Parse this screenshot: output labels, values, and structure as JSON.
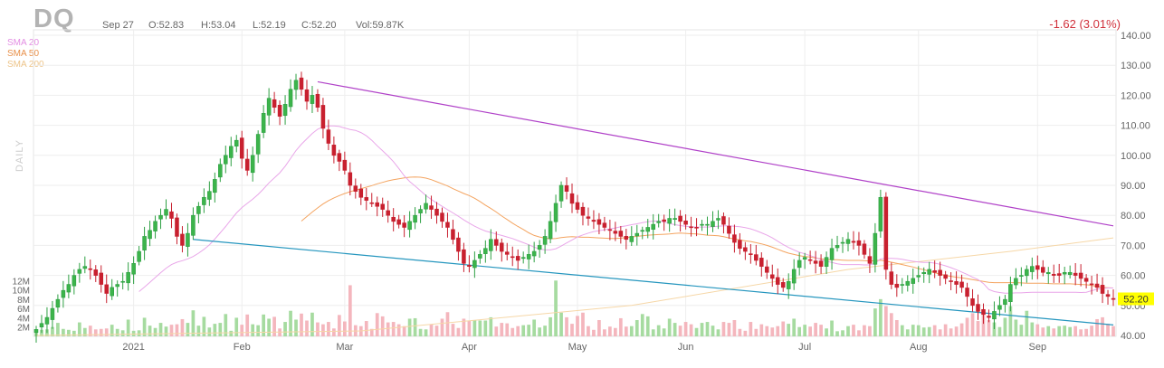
{
  "header": {
    "ticker": "DQ",
    "date": "Sep 27",
    "open": "O:52.83",
    "high": "H:53.04",
    "low": "L:52.19",
    "close": "C:52.20",
    "volume": "Vol:59.87K",
    "change": "-1.62 (3.01%)"
  },
  "legend": {
    "sma20": "SMA 20",
    "sma50": "SMA 50",
    "sma200": "SMA 200",
    "period": "DAILY"
  },
  "colors": {
    "up": "#2ea043",
    "up_fill": "#3cb44b",
    "down": "#c8202f",
    "vol_up": "#a6dba0",
    "vol_down": "#f4b6bd",
    "sma20": "#e9a6e9",
    "sma50": "#f4a460",
    "sma200": "#f6d7a7",
    "upper_trend": "#b041c8",
    "lower_trend": "#2596be",
    "last_price_bg": "#ffff00"
  },
  "chart_data": {
    "type": "candlestick",
    "price_axis": {
      "min": 40,
      "max": 140,
      "ticks": [
        "140.00",
        "130.00",
        "120.00",
        "110.00",
        "100.00",
        "90.00",
        "80.00",
        "70.00",
        "60.00",
        "50.00",
        "40.00"
      ],
      "values": [
        140,
        130,
        120,
        110,
        100,
        90,
        80,
        70,
        60,
        50,
        40
      ]
    },
    "volume_axis": {
      "max": 14,
      "ticks": [
        "12M",
        "10M",
        "8M",
        "6M",
        "4M",
        "2M"
      ],
      "values": [
        12,
        10,
        8,
        6,
        4,
        2
      ]
    },
    "x_labels": [
      {
        "label": "2021",
        "i": 18
      },
      {
        "label": "Feb",
        "i": 38
      },
      {
        "label": "Mar",
        "i": 57
      },
      {
        "label": "Apr",
        "i": 80
      },
      {
        "label": "May",
        "i": 100
      },
      {
        "label": "Jun",
        "i": 120
      },
      {
        "label": "Jul",
        "i": 142
      },
      {
        "label": "Aug",
        "i": 163
      },
      {
        "label": "Sep",
        "i": 185
      }
    ],
    "last_price": "52.20",
    "last_price_value": 52.2,
    "closes": [
      42,
      44,
      46,
      49,
      52,
      55,
      57,
      60,
      62,
      63,
      62,
      60,
      57,
      54,
      56,
      57,
      58,
      61,
      64,
      68,
      73,
      75,
      78,
      80,
      82,
      79,
      73,
      70,
      74,
      80,
      83,
      86,
      88,
      92,
      97,
      100,
      103,
      105,
      99,
      95,
      100,
      107,
      114,
      119,
      116,
      113,
      117,
      122,
      125,
      122,
      118,
      120,
      116,
      109,
      104,
      100,
      98,
      95,
      90,
      88,
      86,
      85,
      84,
      83,
      82,
      80,
      78,
      77,
      76,
      78,
      80,
      82,
      84,
      82,
      80,
      78,
      76,
      72,
      68,
      64,
      63,
      65,
      67,
      69,
      72,
      70,
      68,
      67,
      66,
      65,
      66,
      67,
      68,
      70,
      73,
      78,
      84,
      90,
      88,
      84,
      82,
      80,
      79,
      78,
      77,
      76,
      75,
      74,
      73,
      72,
      73,
      74,
      75,
      76,
      77,
      78,
      78,
      79,
      79,
      78,
      77,
      76,
      76,
      77,
      77,
      78,
      79,
      77,
      74,
      71,
      69,
      68,
      67,
      65,
      63,
      61,
      59,
      57,
      56,
      58,
      62,
      65,
      66,
      65,
      64,
      63,
      66,
      69,
      70,
      71,
      72,
      71,
      70,
      67,
      64,
      74,
      86,
      62,
      57,
      56,
      57,
      58,
      59,
      60,
      61,
      62,
      61,
      60,
      59,
      58,
      57,
      56,
      53,
      50,
      48,
      47,
      46,
      48,
      50,
      52,
      57,
      59,
      60,
      62,
      63,
      62,
      61,
      61,
      60,
      60,
      61,
      61,
      60,
      59,
      58,
      57,
      56,
      54,
      53,
      52
    ],
    "sma20": [
      null,
      null,
      null,
      null,
      null,
      null,
      null,
      null,
      null,
      null,
      null,
      null,
      null,
      null,
      null,
      null,
      null,
      null,
      null,
      54.6,
      56.1,
      57.7,
      59.3,
      60.9,
      62.4,
      63.6,
      64.4,
      64.9,
      65.5,
      66.3,
      67.4,
      68.7,
      70.2,
      72.1,
      74.2,
      76.3,
      78.6,
      80.8,
      82.6,
      84.0,
      85.4,
      87.0,
      88.8,
      90.8,
      92.5,
      94.2,
      96.4,
      99.0,
      101.6,
      103.7,
      105.5,
      107.3,
      108.7,
      109.5,
      109.8,
      109.8,
      109.6,
      109.1,
      108.6,
      108.3,
      107.6,
      106.5,
      105.0,
      103.2,
      101.5,
      99.8,
      97.9,
      95.6,
      93.2,
      91.3,
      89.8,
      88.2,
      86.6,
      85.3,
      84.1,
      83.0,
      81.9,
      80.8,
      79.7,
      78.5,
      77.4,
      76.4,
      75.5,
      74.8,
      74.3,
      73.8,
      73.3,
      72.8,
      72.3,
      71.6,
      70.9,
      70.2,
      69.4,
      68.8,
      68.5,
      68.5,
      68.9,
      69.8,
      70.8,
      71.8,
      72.8,
      73.5,
      74.1,
      74.6,
      74.9,
      75.2,
      75.5,
      75.8,
      76.2,
      76.5,
      76.9,
      77.2,
      77.6,
      77.9,
      78.1,
      78.1,
      77.8,
      77.3,
      76.9,
      76.6,
      76.4,
      76.2,
      76.1,
      76.1,
      76.1,
      76.2,
      76.4,
      76.5,
      76.5,
      76.4,
      76.2,
      75.9,
      75.5,
      74.9,
      74.2,
      73.4,
      72.5,
      71.4,
      70.3,
      69.3,
      68.5,
      67.7,
      67.2,
      66.6,
      66.0,
      65.2,
      64.7,
      64.3,
      63.9,
      63.6,
      63.6,
      63.6,
      63.6,
      63.5,
      63.5,
      64.1,
      65.5,
      65.7,
      65.7,
      65.6,
      65.4,
      65.0,
      64.7,
      64.5,
      64.3,
      64.3,
      64.1,
      63.7,
      63.2,
      62.6,
      61.9,
      61.1,
      60.3,
      59.4,
      58.6,
      57.3,
      55.3,
      54.6,
      54.3,
      54.1,
      54.1,
      54.2,
      54.2,
      54.3,
      54.4,
      54.4,
      54.4,
      54.4,
      54.4,
      54.4,
      54.4,
      54.4,
      54.4,
      54.3,
      54.4,
      54.9,
      55.4,
      55.7,
      55.8,
      55.8
    ],
    "sma50": [
      null,
      null,
      null,
      null,
      null,
      null,
      null,
      null,
      null,
      null,
      null,
      null,
      null,
      null,
      null,
      null,
      null,
      null,
      null,
      null,
      null,
      null,
      null,
      null,
      null,
      null,
      null,
      null,
      null,
      null,
      null,
      null,
      null,
      null,
      null,
      null,
      null,
      null,
      null,
      null,
      null,
      null,
      null,
      null,
      null,
      null,
      null,
      null,
      null,
      78.1,
      79.6,
      81.1,
      82.5,
      83.8,
      84.9,
      85.8,
      86.6,
      87.3,
      87.9,
      88.4,
      88.9,
      89.4,
      89.9,
      90.5,
      91.0,
      91.5,
      91.9,
      92.2,
      92.5,
      92.7,
      92.8,
      92.7,
      92.4,
      91.9,
      91.2,
      90.5,
      89.8,
      88.9,
      88.1,
      87.3,
      86.6,
      85.7,
      84.6,
      83.4,
      82.3,
      81.1,
      79.8,
      78.6,
      77.4,
      76.3,
      75.3,
      74.2,
      73.3,
      72.8,
      72.4,
      72.2,
      72.3,
      72.6,
      72.8,
      72.9,
      72.8,
      72.7,
      72.7,
      72.6,
      72.5,
      72.4,
      72.3,
      72.3,
      72.4,
      72.6,
      72.8,
      73.0,
      73.2,
      73.4,
      73.5,
      73.6,
      73.7,
      73.8,
      74.0,
      74.1,
      74.0,
      73.9,
      73.8,
      73.6,
      73.4,
      73.3,
      73.2,
      72.9,
      72.5,
      72.1,
      71.8,
      71.5,
      71.3,
      70.9,
      70.5,
      70.0,
      69.4,
      68.7,
      68.0,
      67.4,
      67.0,
      66.6,
      66.3,
      66.1,
      65.8,
      65.5,
      65.3,
      65.2,
      65.2,
      65.1,
      65.0,
      65.0,
      65.0,
      64.9,
      64.8,
      64.9,
      65.1,
      64.8,
      64.4,
      64.0,
      63.6,
      63.2,
      62.8,
      62.3,
      61.9,
      61.4,
      60.9,
      60.4,
      60.0,
      59.7,
      59.4,
      59.2,
      58.9,
      58.6,
      58.3,
      58.0,
      57.7,
      57.6,
      57.6,
      57.6,
      57.6,
      57.6,
      57.5,
      57.4,
      57.4,
      57.4,
      57.4,
      57.3,
      57.2,
      57.2,
      57.2,
      57.2,
      57.1,
      57.0,
      56.9,
      56.7,
      56.3,
      56.0,
      55.9,
      55.8
    ],
    "sma200_points": [
      [
        0,
        40.0
      ],
      [
        60,
        41.5
      ],
      [
        110,
        50.0
      ],
      [
        150,
        62.0
      ],
      [
        180,
        68.0
      ],
      [
        199,
        72.5
      ]
    ],
    "trendlines": [
      {
        "name": "upper",
        "from": [
          52,
          124.5
        ],
        "to": [
          199,
          76.5
        ]
      },
      {
        "name": "lower",
        "from": [
          29,
          72.0
        ],
        "to": [
          199,
          43.5
        ]
      }
    ],
    "volume_millions": [
      1.3,
      1.4,
      1.5,
      2.0,
      2.9,
      1.6,
      1.4,
      1.2,
      3.0,
      1.8,
      2.3,
      1.5,
      1.6,
      1.7,
      2.5,
      1.6,
      1.3,
      3.6,
      1.2,
      1.3,
      4.0,
      2.3,
      1.8,
      2.9,
      2.1,
      2.5,
      2.6,
      3.7,
      2.9,
      5.6,
      2.3,
      4.2,
      1.9,
      2.7,
      2.9,
      4.8,
      1.2,
      4.0,
      2.5,
      4.7,
      2.6,
      2.4,
      4.7,
      3.8,
      4.2,
      1.7,
      3.1,
      5.5,
      3.6,
      4.9,
      3.4,
      5.1,
      3.0,
      2.6,
      3.1,
      1.7,
      4.6,
      3.2,
      11.0,
      2.4,
      2.2,
      3.3,
      1.6,
      5.0,
      4.3,
      3.0,
      3.1,
      2.6,
      2.2,
      3.8,
      3.9,
      1.6,
      1.5,
      2.6,
      2.3,
      3.8,
      5.2,
      2.7,
      1.8,
      3.8,
      3.3,
      3.5,
      3.4,
      3.4,
      4.1,
      2.1,
      2.9,
      2.8,
      1.8,
      2.2,
      2.4,
      2.5,
      3.6,
      1.9,
      2.3,
      4.1,
      12.0,
      5.1,
      4.1,
      2.7,
      4.4,
      5.1,
      2.2,
      1.4,
      3.5,
      1.5,
      2.1,
      1.8,
      3.9,
      2.1,
      2.2,
      3.5,
      4.8,
      4.3,
      1.5,
      2.4,
      1.7,
      3.8,
      2.9,
      2.3,
      3.1,
      2.6,
      1.8,
      2.9,
      3.1,
      2.3,
      1.5,
      3.1,
      2.9,
      3.5,
      1.6,
      1.2,
      3.1,
      1.6,
      2.6,
      2.2,
      1.9,
      2.2,
      3.2,
      2.7,
      3.8,
      2.0,
      2.5,
      2.1,
      2.9,
      2.5,
      1.7,
      3.4,
      1.1,
      1.3,
      2.2,
      2.5,
      1.3,
      2.4,
      2.2,
      6.0,
      8.0,
      6.5,
      5.0,
      3.5,
      2.4,
      1.5,
      2.5,
      2.4,
      1.9,
      2.0,
      2.4,
      1.5,
      2.6,
      1.7,
      2.1,
      2.8,
      4.0,
      5.0,
      3.3,
      5.1,
      3.5,
      3.0,
      2.0,
      4.0,
      6.5,
      3.6,
      2.5,
      5.5,
      3.0,
      2.6,
      1.9,
      2.2,
      1.7,
      2.2,
      2.3,
      2.0,
      2.2,
      1.5,
      1.6,
      2.3,
      3.7,
      4.1,
      2.7,
      2.2
    ]
  }
}
